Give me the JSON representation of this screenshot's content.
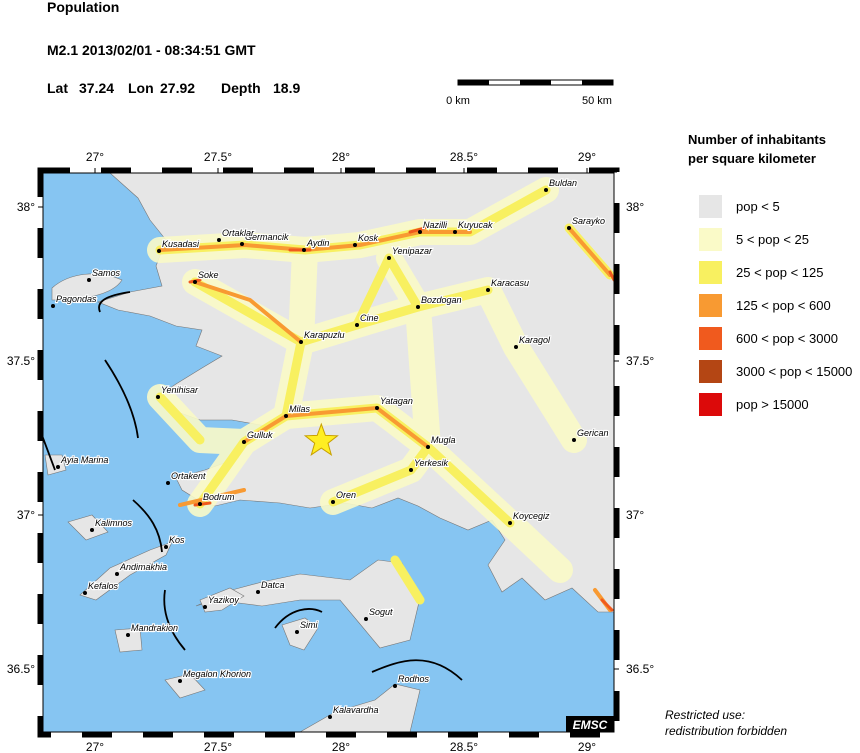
{
  "header": {
    "title": "Population",
    "event": "M2.1  2013/02/01 - 08:34:51 GMT",
    "lat_label": "Lat",
    "lat": 37.24,
    "lon_label": "Lon",
    "lon": 27.92,
    "depth_label": "Depth",
    "depth": 18.9
  },
  "scale": {
    "start": "0 km",
    "end": "50 km"
  },
  "legend": {
    "title": [
      "Number of inhabitants",
      "per square kilometer"
    ],
    "items": [
      {
        "label": "pop < 5",
        "color": "#e6e6e6"
      },
      {
        "label": "5 < pop < 25",
        "color": "#fafac8"
      },
      {
        "label": "25 < pop < 125",
        "color": "#f8f060"
      },
      {
        "label": "125 < pop < 600",
        "color": "#f89a32"
      },
      {
        "label": "600 < pop < 3000",
        "color": "#f05a1e"
      },
      {
        "label": "3000 < pop < 15000",
        "color": "#b44614"
      },
      {
        "label": "pop > 15000",
        "color": "#dc0a0a"
      }
    ]
  },
  "map": {
    "lon_ticks": [
      {
        "value": 27,
        "label": "27°"
      },
      {
        "value": 27.5,
        "label": "27.5°"
      },
      {
        "value": 28,
        "label": "28°"
      },
      {
        "value": 28.5,
        "label": "28.5°"
      },
      {
        "value": 29,
        "label": "29°"
      }
    ],
    "lat_ticks": [
      {
        "value": 38,
        "label": "38°"
      },
      {
        "value": 37.5,
        "label": "37.5°"
      },
      {
        "value": 37,
        "label": "37°"
      },
      {
        "value": 36.5,
        "label": "36.5°"
      }
    ],
    "towns": [
      "Buldan",
      "Sarayko",
      "Kuyucak",
      "Nazilli",
      "Kosk",
      "Aydin",
      "Germancik",
      "Ortaklar",
      "Kusadasi",
      "Yenipazar",
      "Samos",
      "Karacasu",
      "Soke",
      "Pagondas",
      "Bozdogan",
      "Cine",
      "Karapuzlu",
      "Karagol",
      "Yenihisar",
      "Yatagan",
      "Milas",
      "Mugla",
      "Gulluk",
      "Gerican",
      "Ayia Marina",
      "Yerkesik",
      "Ortakent",
      "Oren",
      "Bodrum",
      "Koycegiz",
      "Kalimnos",
      "Kos",
      "Andimakhia",
      "Kefalos",
      "Datca",
      "Yazikoy",
      "Sogut",
      "Mandrakion",
      "Simi",
      "Megalon Khorion",
      "Rodhos",
      "Kalavardha"
    ],
    "credit": "EMSC"
  },
  "footer": [
    "Restricted use:",
    "redistribution forbidden"
  ]
}
